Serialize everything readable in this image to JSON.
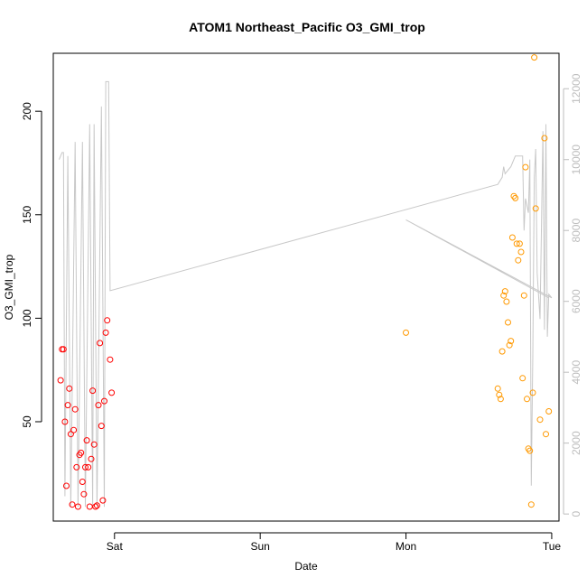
{
  "chart_data": {
    "type": "scatter",
    "title": "ATOM1 Northeast_Pacific O3_GMI_trop",
    "xlabel": "Date",
    "ylabel": "O3_GMI_trop",
    "xlim": [
      -0.42,
      3.05
    ],
    "ylim": [
      2,
      228
    ],
    "y2lim": [
      -200,
      13000
    ],
    "x_ticks": [
      {
        "value": 0,
        "label": "Sat"
      },
      {
        "value": 1,
        "label": "Sun"
      },
      {
        "value": 2,
        "label": "Mon"
      },
      {
        "value": 3,
        "label": "Tue"
      }
    ],
    "y_ticks": [
      50,
      100,
      150,
      200
    ],
    "y2_ticks": [
      0,
      2000,
      4000,
      6000,
      8000,
      10000,
      12000
    ],
    "colors": {
      "series_red": "#ff0000",
      "series_orange": "#ff9900",
      "altitude": "#c8c8c8",
      "axis": "#000000",
      "right_axis": "#bdbdbd"
    },
    "series": [
      {
        "color": "#ff0000",
        "points": [
          [
            -0.37,
            70
          ],
          [
            -0.36,
            85
          ],
          [
            -0.35,
            85
          ],
          [
            -0.34,
            50
          ],
          [
            -0.33,
            19
          ],
          [
            -0.32,
            58
          ],
          [
            -0.31,
            66
          ],
          [
            -0.3,
            44
          ],
          [
            -0.29,
            10
          ],
          [
            -0.28,
            46
          ],
          [
            -0.27,
            56
          ],
          [
            -0.26,
            28
          ],
          [
            -0.25,
            9
          ],
          [
            -0.24,
            34
          ],
          [
            -0.23,
            35
          ],
          [
            -0.22,
            21
          ],
          [
            -0.21,
            15
          ],
          [
            -0.2,
            28
          ],
          [
            -0.19,
            41
          ],
          [
            -0.18,
            28
          ],
          [
            -0.17,
            9
          ],
          [
            -0.16,
            32
          ],
          [
            -0.15,
            65
          ],
          [
            -0.14,
            39
          ],
          [
            -0.13,
            9
          ],
          [
            -0.12,
            9.5
          ],
          [
            -0.11,
            58
          ],
          [
            -0.1,
            88
          ],
          [
            -0.09,
            48
          ],
          [
            -0.08,
            12
          ],
          [
            -0.07,
            60
          ],
          [
            -0.06,
            93
          ],
          [
            -0.05,
            99
          ],
          [
            -0.03,
            80
          ],
          [
            -0.02,
            64
          ]
        ]
      },
      {
        "color": "#ff9900",
        "points": [
          [
            2.0,
            93
          ],
          [
            2.63,
            66
          ],
          [
            2.64,
            63
          ],
          [
            2.65,
            61
          ],
          [
            2.66,
            84
          ],
          [
            2.67,
            111
          ],
          [
            2.68,
            113
          ],
          [
            2.69,
            108
          ],
          [
            2.7,
            98
          ],
          [
            2.71,
            87
          ],
          [
            2.72,
            89
          ],
          [
            2.73,
            139
          ],
          [
            2.74,
            159
          ],
          [
            2.75,
            158
          ],
          [
            2.76,
            136
          ],
          [
            2.77,
            128
          ],
          [
            2.78,
            136
          ],
          [
            2.79,
            132
          ],
          [
            2.8,
            71
          ],
          [
            2.81,
            111
          ],
          [
            2.82,
            173
          ],
          [
            2.83,
            61
          ],
          [
            2.84,
            37
          ],
          [
            2.85,
            36
          ],
          [
            2.86,
            10
          ],
          [
            2.87,
            64
          ],
          [
            2.88,
            226
          ],
          [
            2.89,
            153
          ],
          [
            2.92,
            51
          ],
          [
            2.95,
            187
          ],
          [
            2.96,
            44
          ],
          [
            2.98,
            55
          ]
        ]
      }
    ],
    "altitude_line": [
      [
        -0.38,
        10000
      ],
      [
        -0.36,
        10200
      ],
      [
        -0.35,
        10200
      ],
      [
        -0.34,
        500
      ],
      [
        -0.32,
        10100
      ],
      [
        -0.3,
        200
      ],
      [
        -0.27,
        10500
      ],
      [
        -0.25,
        200
      ],
      [
        -0.22,
        10500
      ],
      [
        -0.2,
        200
      ],
      [
        -0.17,
        11000
      ],
      [
        -0.15,
        200
      ],
      [
        -0.14,
        11000
      ],
      [
        -0.12,
        200
      ],
      [
        -0.09,
        11500
      ],
      [
        -0.07,
        200
      ],
      [
        -0.06,
        12200
      ],
      [
        -0.04,
        12200
      ],
      [
        -0.03,
        6300
      ],
      [
        2.63,
        9300
      ],
      [
        2.66,
        9500
      ],
      [
        2.67,
        9800
      ],
      [
        2.68,
        9600
      ],
      [
        2.7,
        9700
      ],
      [
        2.72,
        9800
      ],
      [
        2.75,
        10100
      ],
      [
        2.8,
        10100
      ],
      [
        2.81,
        8000
      ],
      [
        2.82,
        8900
      ],
      [
        2.84,
        8500
      ],
      [
        2.85,
        10000
      ],
      [
        2.86,
        800
      ],
      [
        2.87,
        4500
      ],
      [
        2.88,
        9500
      ],
      [
        2.89,
        10300
      ],
      [
        2.9,
        6800
      ],
      [
        2.92,
        5500
      ],
      [
        2.94,
        10800
      ],
      [
        2.95,
        5200
      ],
      [
        2.96,
        11000
      ],
      [
        2.97,
        5000
      ],
      [
        2.98,
        6200
      ],
      [
        3.0,
        6100
      ],
      [
        2.0,
        8300
      ],
      [
        2.98,
        6100
      ]
    ]
  }
}
